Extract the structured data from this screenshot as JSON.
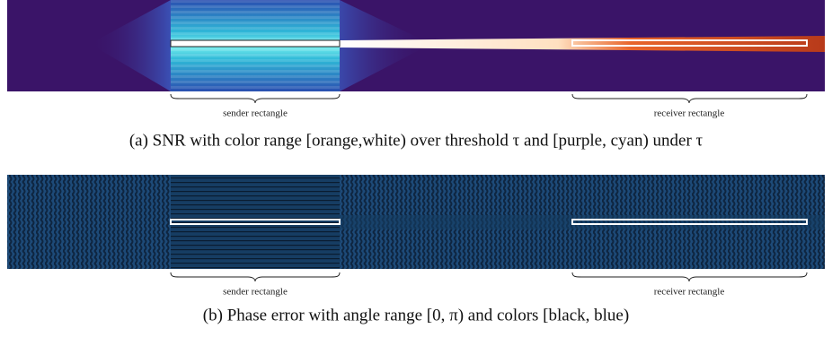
{
  "figure": {
    "panels": [
      {
        "sender_label": "sender rectangle",
        "receiver_label": "receiver rectangle",
        "caption": "(a) SNR with color range [orange,white) over threshold τ and [purple, cyan) under τ"
      },
      {
        "sender_label": "sender rectangle",
        "receiver_label": "receiver rectangle",
        "caption": "(b) Phase error with angle range [0, π) and colors [black, blue)"
      }
    ]
  }
}
